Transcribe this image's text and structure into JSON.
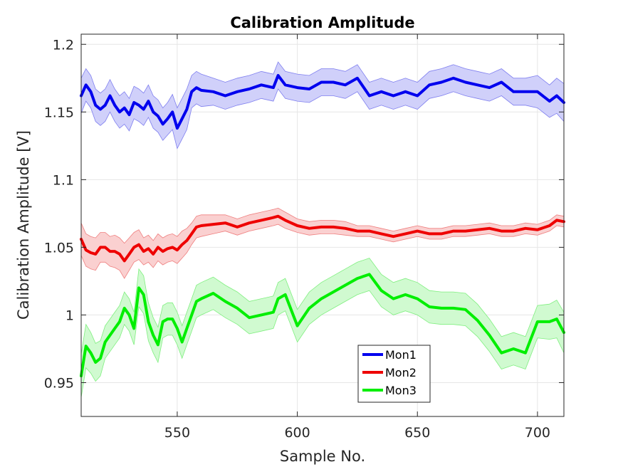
{
  "chart_data": {
    "type": "line",
    "title": "Calibration Amplitude",
    "xlabel": "Sample No.",
    "ylabel": "Calibration Amplitude [V]",
    "xlim": [
      510,
      711
    ],
    "ylim": [
      0.925,
      1.2075
    ],
    "xticks": [
      550,
      600,
      650,
      700
    ],
    "yticks": [
      0.95,
      1,
      1.05,
      1.1,
      1.15,
      1.2
    ],
    "xtick_labels": [
      "550",
      "600",
      "650",
      "700"
    ],
    "ytick_labels": [
      "0.95",
      "1",
      "1.05",
      "1.1",
      "1.15",
      "1.2"
    ],
    "grid": true,
    "legend_position": "bottom-center",
    "series": [
      {
        "name": "Mon1",
        "color": "#0000ee",
        "band_color": "#d0d0fa",
        "band_edge": "#7f7fef",
        "x": [
          510,
          512,
          514,
          516,
          518,
          520,
          522,
          524,
          526,
          528,
          530,
          532,
          534,
          536,
          538,
          540,
          542,
          544,
          546,
          548,
          550,
          552,
          554,
          556,
          558,
          560,
          565,
          570,
          575,
          580,
          585,
          590,
          592,
          595,
          600,
          605,
          610,
          615,
          620,
          625,
          630,
          635,
          640,
          645,
          650,
          655,
          660,
          665,
          670,
          675,
          680,
          685,
          690,
          695,
          700,
          705,
          708,
          711
        ],
        "values": [
          1.162,
          1.17,
          1.165,
          1.155,
          1.152,
          1.155,
          1.162,
          1.155,
          1.15,
          1.153,
          1.148,
          1.157,
          1.155,
          1.152,
          1.158,
          1.15,
          1.147,
          1.141,
          1.145,
          1.15,
          1.138,
          1.145,
          1.152,
          1.165,
          1.168,
          1.166,
          1.165,
          1.162,
          1.165,
          1.167,
          1.17,
          1.168,
          1.177,
          1.17,
          1.168,
          1.167,
          1.172,
          1.172,
          1.17,
          1.175,
          1.162,
          1.165,
          1.162,
          1.165,
          1.162,
          1.17,
          1.172,
          1.175,
          1.172,
          1.17,
          1.168,
          1.172,
          1.165,
          1.165,
          1.165,
          1.158,
          1.162,
          1.157
        ],
        "band": [
          0.013,
          0.012,
          0.012,
          0.012,
          0.012,
          0.012,
          0.012,
          0.012,
          0.012,
          0.012,
          0.012,
          0.012,
          0.012,
          0.012,
          0.012,
          0.012,
          0.012,
          0.012,
          0.012,
          0.013,
          0.015,
          0.015,
          0.015,
          0.012,
          0.012,
          0.012,
          0.01,
          0.01,
          0.01,
          0.01,
          0.01,
          0.01,
          0.01,
          0.01,
          0.01,
          0.01,
          0.01,
          0.01,
          0.01,
          0.01,
          0.01,
          0.01,
          0.01,
          0.01,
          0.01,
          0.01,
          0.01,
          0.01,
          0.01,
          0.01,
          0.01,
          0.01,
          0.01,
          0.01,
          0.012,
          0.012,
          0.013,
          0.014
        ]
      },
      {
        "name": "Mon2",
        "color": "#ee0000",
        "band_color": "#fad0d0",
        "band_edge": "#ef7f7f",
        "x": [
          510,
          512,
          514,
          516,
          518,
          520,
          522,
          524,
          526,
          528,
          530,
          532,
          534,
          536,
          538,
          540,
          542,
          544,
          546,
          548,
          550,
          552,
          554,
          556,
          558,
          560,
          565,
          570,
          575,
          580,
          585,
          590,
          592,
          595,
          600,
          605,
          610,
          615,
          620,
          625,
          630,
          635,
          640,
          645,
          650,
          655,
          660,
          665,
          670,
          675,
          680,
          685,
          690,
          695,
          700,
          705,
          708,
          711
        ],
        "values": [
          1.056,
          1.048,
          1.046,
          1.045,
          1.05,
          1.05,
          1.047,
          1.047,
          1.045,
          1.04,
          1.045,
          1.05,
          1.052,
          1.047,
          1.049,
          1.045,
          1.05,
          1.047,
          1.049,
          1.05,
          1.048,
          1.052,
          1.055,
          1.06,
          1.065,
          1.066,
          1.067,
          1.068,
          1.065,
          1.068,
          1.07,
          1.072,
          1.073,
          1.07,
          1.066,
          1.064,
          1.065,
          1.065,
          1.064,
          1.062,
          1.062,
          1.06,
          1.058,
          1.06,
          1.062,
          1.06,
          1.06,
          1.062,
          1.062,
          1.063,
          1.064,
          1.062,
          1.062,
          1.064,
          1.063,
          1.066,
          1.07,
          1.069
        ],
        "band": [
          0.012,
          0.012,
          0.012,
          0.012,
          0.011,
          0.011,
          0.011,
          0.012,
          0.012,
          0.013,
          0.012,
          0.011,
          0.011,
          0.01,
          0.01,
          0.01,
          0.01,
          0.01,
          0.01,
          0.01,
          0.01,
          0.01,
          0.009,
          0.008,
          0.008,
          0.008,
          0.007,
          0.006,
          0.006,
          0.006,
          0.006,
          0.006,
          0.006,
          0.006,
          0.005,
          0.005,
          0.005,
          0.005,
          0.005,
          0.004,
          0.004,
          0.004,
          0.004,
          0.004,
          0.004,
          0.004,
          0.004,
          0.004,
          0.004,
          0.004,
          0.004,
          0.004,
          0.004,
          0.004,
          0.004,
          0.004,
          0.004,
          0.004
        ]
      },
      {
        "name": "Mon3",
        "color": "#00ee00",
        "band_color": "#d0fad0",
        "band_edge": "#7fef7f",
        "x": [
          510,
          512,
          514,
          516,
          518,
          520,
          522,
          524,
          526,
          528,
          530,
          532,
          534,
          536,
          538,
          540,
          542,
          544,
          546,
          548,
          550,
          552,
          554,
          556,
          558,
          560,
          565,
          570,
          575,
          580,
          585,
          590,
          592,
          595,
          600,
          605,
          610,
          615,
          620,
          625,
          630,
          635,
          640,
          645,
          650,
          655,
          660,
          665,
          670,
          675,
          680,
          685,
          690,
          695,
          700,
          705,
          708,
          711
        ],
        "values": [
          0.955,
          0.977,
          0.972,
          0.965,
          0.968,
          0.98,
          0.985,
          0.99,
          0.995,
          1.005,
          1.0,
          0.99,
          1.02,
          1.015,
          0.995,
          0.985,
          0.978,
          0.995,
          0.997,
          0.997,
          0.99,
          0.98,
          0.99,
          1.0,
          1.01,
          1.012,
          1.016,
          1.01,
          1.005,
          0.998,
          1.0,
          1.002,
          1.012,
          1.015,
          0.992,
          1.005,
          1.012,
          1.017,
          1.022,
          1.027,
          1.03,
          1.018,
          1.012,
          1.015,
          1.012,
          1.006,
          1.005,
          1.005,
          1.004,
          0.996,
          0.985,
          0.972,
          0.975,
          0.972,
          0.995,
          0.995,
          0.997,
          0.987
        ],
        "band": [
          0.016,
          0.016,
          0.015,
          0.014,
          0.013,
          0.012,
          0.012,
          0.012,
          0.012,
          0.012,
          0.012,
          0.012,
          0.014,
          0.014,
          0.014,
          0.013,
          0.013,
          0.012,
          0.012,
          0.012,
          0.012,
          0.012,
          0.012,
          0.012,
          0.012,
          0.012,
          0.012,
          0.012,
          0.012,
          0.012,
          0.012,
          0.012,
          0.012,
          0.012,
          0.012,
          0.012,
          0.012,
          0.012,
          0.012,
          0.012,
          0.012,
          0.012,
          0.012,
          0.012,
          0.012,
          0.012,
          0.012,
          0.012,
          0.012,
          0.012,
          0.012,
          0.012,
          0.012,
          0.012,
          0.012,
          0.013,
          0.014,
          0.015
        ]
      }
    ]
  }
}
